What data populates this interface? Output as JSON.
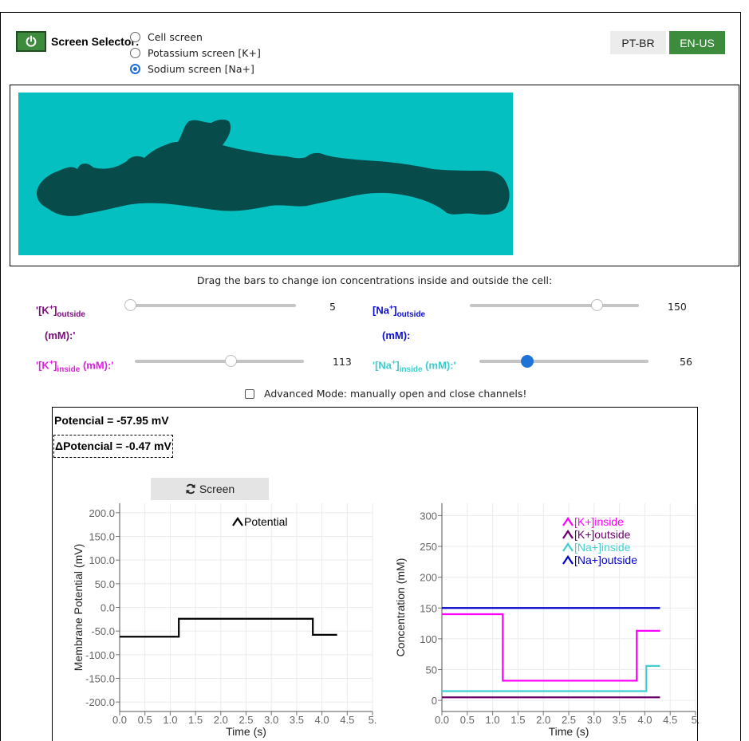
{
  "header": {
    "power_icon": "power-icon",
    "selector_label": "Screen Selector:",
    "screens": [
      {
        "label": "Cell screen",
        "selected": false
      },
      {
        "label": "Potassium screen [K+]",
        "selected": false
      },
      {
        "label": "Sodium screen [Na+]",
        "selected": true
      }
    ],
    "languages": [
      {
        "label": "PT-BR",
        "active": false
      },
      {
        "label": "EN-US",
        "active": true
      }
    ],
    "colors": {
      "power": "#3d8b3d",
      "active_lang": "#3d8b3d"
    }
  },
  "cell_view": {
    "background": "#04c0c0",
    "cell_color": "#074b4b"
  },
  "controls": {
    "instruction": "Drag the bars to change ion concentrations inside and outside the cell:",
    "k_outside": {
      "prefix": "'[K",
      "sup": "+",
      "mid": "]",
      "sub": "outside",
      "unit": "(mM):'",
      "value": "5",
      "fraction": 0.0,
      "color": "#7a0c7a"
    },
    "na_outside": {
      "prefix": "[Na",
      "sup": "+",
      "mid": "]",
      "sub": "outside",
      "unit": "(mM):",
      "value": "150",
      "fraction": 0.75,
      "color": "#1010c8"
    },
    "k_inside": {
      "prefix": "'[K",
      "sup": "+",
      "mid": "]",
      "sub": "inside",
      "unit": " (mM):'",
      "value": "113",
      "fraction": 0.565,
      "color": "#e020e0"
    },
    "na_inside": {
      "prefix": "'[Na",
      "sup": "+",
      "mid": "]",
      "sub": "inside",
      "unit": " (mM):'",
      "value": "56",
      "fraction": 0.28,
      "color": "#3ecbcb"
    },
    "advanced_mode": "Advanced Mode: manually open and close channels!"
  },
  "readouts": {
    "potencial": "Potencial = -57.95 mV",
    "delta_potencial": "ΔPotencial = -0.47 mV",
    "screen_button": "Screen",
    "screen_icon": "refresh-icon"
  },
  "chart_data": [
    {
      "type": "line",
      "xlabel": "Time (s)",
      "ylabel": "Membrane Potential (mV)",
      "xlim": [
        0,
        5
      ],
      "ylim": [
        -220,
        220
      ],
      "x_ticks": [
        "0.0",
        "0.5",
        "1.0",
        "1.5",
        "2.0",
        "2.5",
        "3.0",
        "3.5",
        "4.0",
        "4.5",
        "5."
      ],
      "y_ticks": [
        "200.0",
        "150.0",
        "100.0",
        "50.0",
        "0.0",
        "-50.0",
        "-100.0",
        "-150.0",
        "-200.0"
      ],
      "y_tick_values": [
        200,
        150,
        100,
        50,
        0,
        -50,
        -100,
        -150,
        -200
      ],
      "grid": true,
      "legend_position": "top-center",
      "series": [
        {
          "name": "Potential",
          "color": "#000000",
          "x": [
            0,
            1.17,
            1.17,
            3.82,
            3.82,
            4.3
          ],
          "y": [
            -62,
            -62,
            -24,
            -24,
            -57.9,
            -57.9
          ]
        }
      ]
    },
    {
      "type": "line",
      "xlabel": "Time (s)",
      "ylabel": "Concentration (mM)",
      "xlim": [
        0,
        5
      ],
      "ylim": [
        -18,
        320
      ],
      "x_ticks": [
        "0.0",
        "0.5",
        "1.0",
        "1.5",
        "2.0",
        "2.5",
        "3.0",
        "3.5",
        "4.0",
        "4.5",
        "5."
      ],
      "y_ticks": [
        "300",
        "250",
        "200",
        "150",
        "100",
        "50",
        "0"
      ],
      "y_tick_values": [
        300,
        250,
        200,
        150,
        100,
        50,
        0
      ],
      "grid": true,
      "legend_position": "top-right",
      "series": [
        {
          "name": "[K+]inside",
          "color": "#ff00ff",
          "x": [
            0,
            1.2,
            1.2,
            3.84,
            3.84,
            4.3
          ],
          "y": [
            140,
            140,
            32,
            32,
            113,
            113
          ]
        },
        {
          "name": "[K+]outside",
          "color": "#6b006b",
          "x": [
            0,
            4.3
          ],
          "y": [
            5,
            5
          ]
        },
        {
          "name": "[Na+]inside",
          "color": "#40d0d0",
          "x": [
            0,
            4.03,
            4.03,
            4.3
          ],
          "y": [
            15,
            15,
            56,
            56
          ]
        },
        {
          "name": "[Na+]outside",
          "color": "#0000cc",
          "x": [
            0,
            4.3
          ],
          "y": [
            150,
            150
          ]
        }
      ]
    }
  ]
}
